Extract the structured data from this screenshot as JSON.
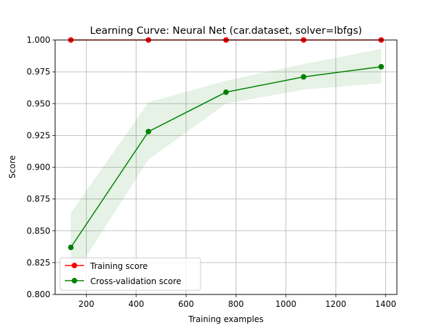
{
  "chart_data": {
    "type": "line",
    "title": "Learning Curve: Neural Net (car.dataset, solver=lbfgs)",
    "xlabel": "Training examples",
    "ylabel": "Score",
    "xlim": [
      75,
      1445
    ],
    "ylim": [
      0.8,
      1.0
    ],
    "xticks": [
      200,
      400,
      600,
      800,
      1000,
      1200,
      1400
    ],
    "yticks": [
      0.8,
      0.825,
      0.85,
      0.875,
      0.9,
      0.925,
      0.95,
      0.975,
      1.0
    ],
    "xtick_labels": [
      "200",
      "400",
      "600",
      "800",
      "1000",
      "1200",
      "1400"
    ],
    "ytick_labels": [
      "0.800",
      "0.825",
      "0.850",
      "0.875",
      "0.900",
      "0.925",
      "0.950",
      "0.975",
      "1.000"
    ],
    "grid": true,
    "legend_position": "lower-left",
    "x": [
      138,
      449,
      760,
      1071,
      1382
    ],
    "series": [
      {
        "name": "Training score",
        "color": "#ff0000",
        "values": [
          1.0,
          1.0,
          1.0,
          1.0,
          1.0
        ],
        "band_lower": [
          1.0,
          1.0,
          1.0,
          1.0,
          1.0
        ],
        "band_upper": [
          1.0,
          1.0,
          1.0,
          1.0,
          1.0
        ]
      },
      {
        "name": "Cross-validation score",
        "color": "#008000",
        "values": [
          0.837,
          0.928,
          0.959,
          0.971,
          0.979
        ],
        "band_lower": [
          0.811,
          0.906,
          0.95,
          0.961,
          0.966
        ],
        "band_upper": [
          0.864,
          0.951,
          0.968,
          0.981,
          0.993
        ]
      }
    ]
  }
}
